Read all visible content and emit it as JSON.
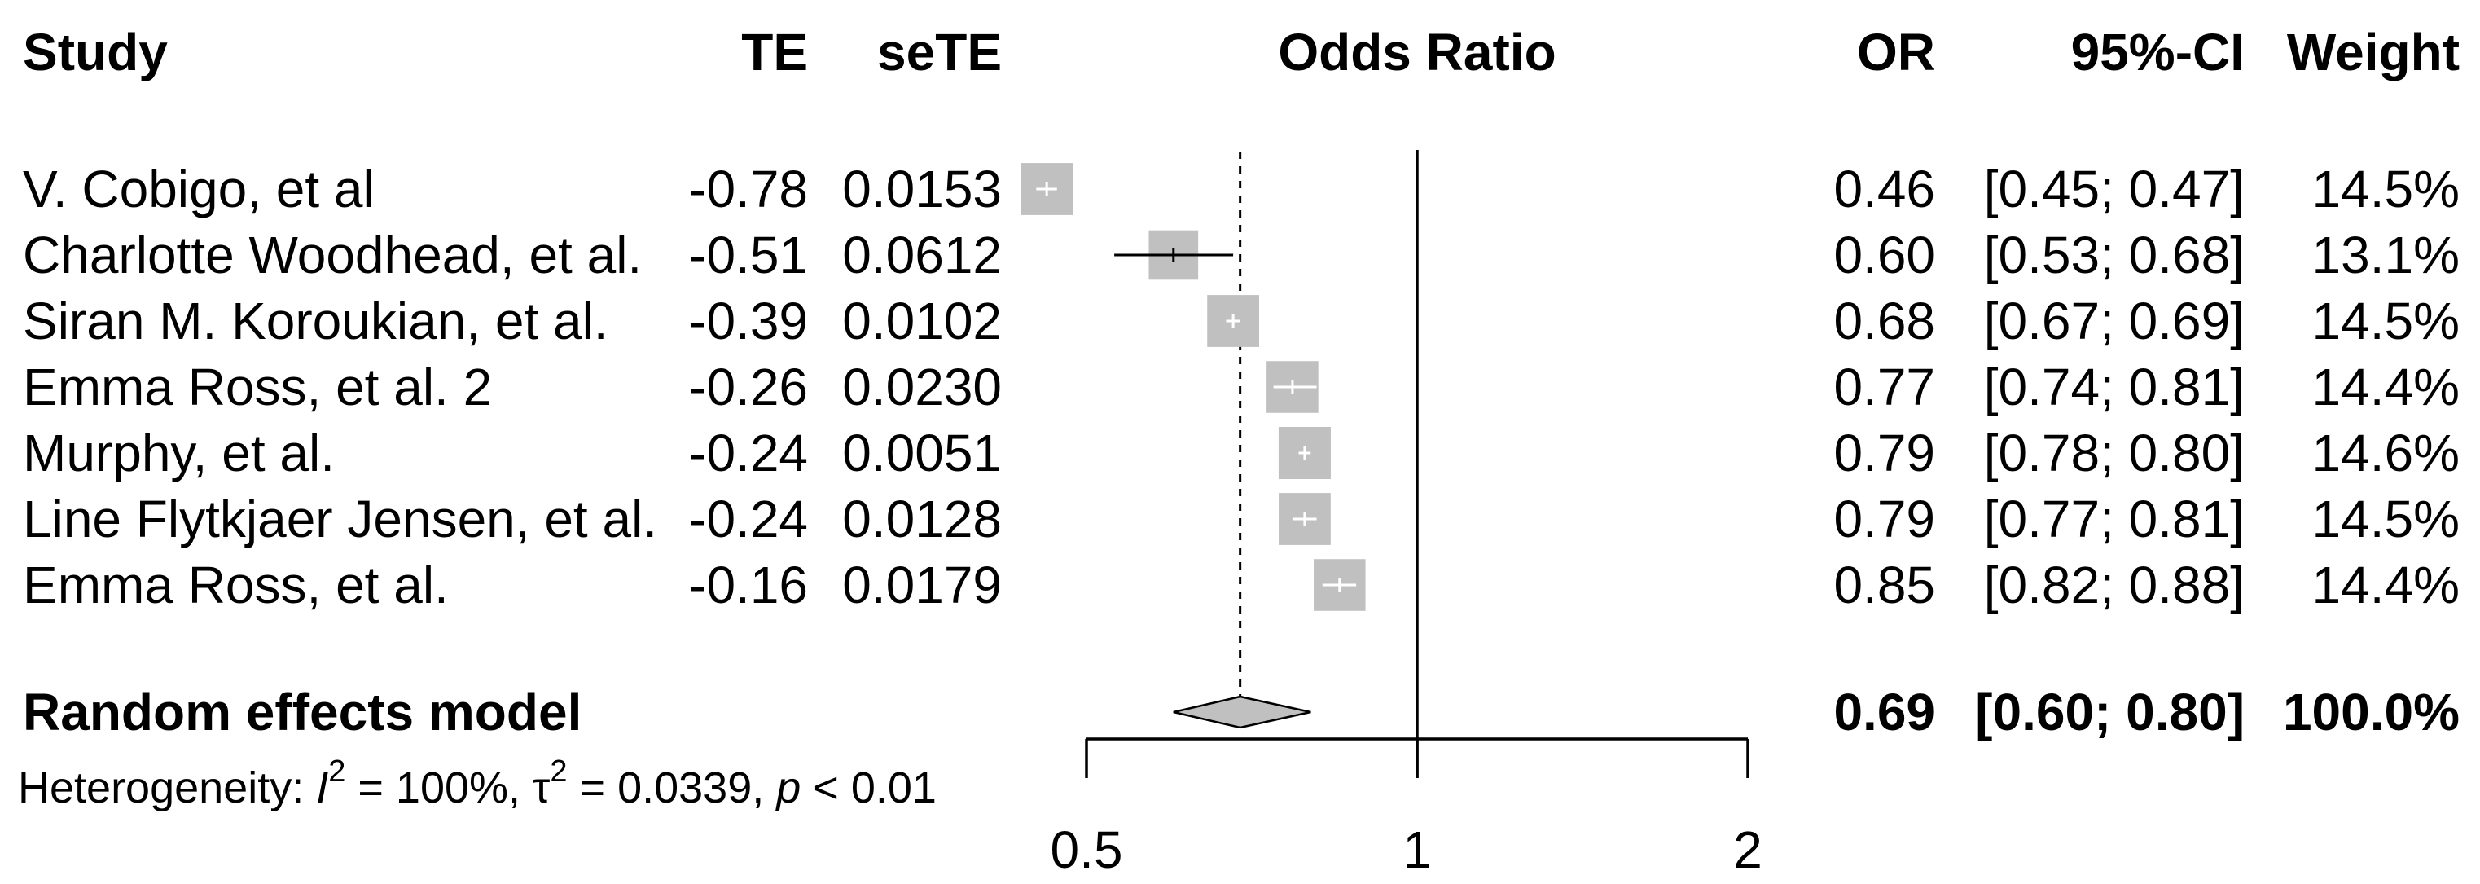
{
  "chart_data": {
    "type": "forest",
    "headers": {
      "study": "Study",
      "te": "TE",
      "sete": "seTE",
      "effect": "Odds Ratio",
      "or": "OR",
      "ci": "95%-CI",
      "weight": "Weight"
    },
    "studies": [
      {
        "study": "V. Cobigo, et al",
        "te": "-0.78",
        "sete": "0.0153",
        "or": 0.46,
        "lower": 0.45,
        "upper": 0.47,
        "or_text": "0.46",
        "ci_text": "[0.45; 0.47]",
        "weight": "14.5%",
        "weight_value": 14.5
      },
      {
        "study": "Charlotte Woodhead, et al.",
        "te": "-0.51",
        "sete": "0.0612",
        "or": 0.6,
        "lower": 0.53,
        "upper": 0.68,
        "or_text": "0.60",
        "ci_text": "[0.53; 0.68]",
        "weight": "13.1%",
        "weight_value": 13.1
      },
      {
        "study": "Siran M. Koroukian, et al.",
        "te": "-0.39",
        "sete": "0.0102",
        "or": 0.68,
        "lower": 0.67,
        "upper": 0.69,
        "or_text": "0.68",
        "ci_text": "[0.67; 0.69]",
        "weight": "14.5%",
        "weight_value": 14.5
      },
      {
        "study": "Emma Ross, et al. 2",
        "te": "-0.26",
        "sete": "0.0230",
        "or": 0.77,
        "lower": 0.74,
        "upper": 0.81,
        "or_text": "0.77",
        "ci_text": "[0.74; 0.81]",
        "weight": "14.4%",
        "weight_value": 14.4
      },
      {
        "study": "Murphy, et al.",
        "te": "-0.24",
        "sete": "0.0051",
        "or": 0.79,
        "lower": 0.78,
        "upper": 0.8,
        "or_text": "0.79",
        "ci_text": "[0.78; 0.80]",
        "weight": "14.6%",
        "weight_value": 14.6
      },
      {
        "study": "Line Flytkjaer Jensen, et al.",
        "te": "-0.24",
        "sete": "0.0128",
        "or": 0.79,
        "lower": 0.77,
        "upper": 0.81,
        "or_text": "0.79",
        "ci_text": "[0.77; 0.81]",
        "weight": "14.5%",
        "weight_value": 14.5
      },
      {
        "study": "Emma Ross, et al.",
        "te": "-0.16",
        "sete": "0.0179",
        "or": 0.85,
        "lower": 0.82,
        "upper": 0.88,
        "or_text": "0.85",
        "ci_text": "[0.82; 0.88]",
        "weight": "14.4%",
        "weight_value": 14.4
      }
    ],
    "pooled": {
      "label": "Random effects model",
      "or": 0.69,
      "lower": 0.6,
      "upper": 0.8,
      "or_text": "0.69",
      "ci_text": "[0.60; 0.80]",
      "weight": "100.0%"
    },
    "heterogeneity": {
      "prefix": "Heterogeneity: ",
      "i_symbol": "I",
      "i_value": " = 100%, ",
      "tau_symbol": "τ",
      "tau_value": " = 0.0339, ",
      "p_symbol": "p",
      "p_value": " < 0.01"
    },
    "axis": {
      "scale": "log",
      "xlim": [
        0.5,
        2
      ],
      "ticks": [
        0.5,
        1,
        2
      ],
      "tick_labels": [
        "0.5",
        "1",
        "2"
      ],
      "null_line": 1
    },
    "square_color": "#c0c0c0",
    "diamond_color": "#c0c0c0"
  }
}
